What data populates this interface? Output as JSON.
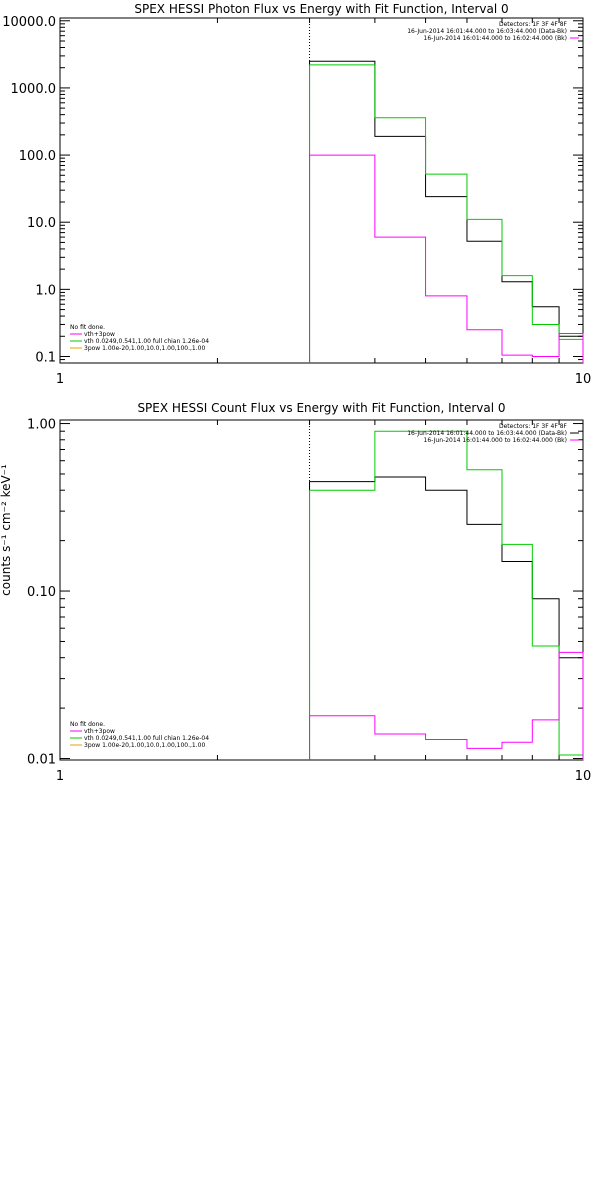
{
  "chart_data": [
    {
      "type": "line",
      "step": true,
      "title": "SPEX HESSI Photon Flux vs Energy with Fit Function, Interval 0",
      "xlabel": "",
      "ylabel": "",
      "xscale": "log",
      "yscale": "log",
      "xlim": [
        1,
        10
      ],
      "ylim": [
        0.08,
        11000
      ],
      "xtick_labels": [
        "1",
        "10"
      ],
      "ytick_values": [
        0.1,
        1,
        10,
        100,
        1000,
        10000
      ],
      "ytick_labels": [
        "0.1",
        "1.0",
        "10.0",
        "100.0",
        "1000.0",
        "10000.0"
      ],
      "vline_x": 3,
      "bin_edges": [
        3,
        4,
        5,
        6,
        7,
        8,
        9,
        10
      ],
      "legend_top_right": {
        "lines": [
          "Detectors: 1F 3F 4F 8F",
          "16-Jun-2014 16:01:44.000 to 16:03:44.000 (Data-Bk)",
          "16-Jun-2014 16:01:44.000 to 16:02:44.000 (Bk)"
        ],
        "colors": [
          "",
          "#000000",
          "#ff00ff"
        ]
      },
      "legend_bottom_left": {
        "lines": [
          "No fit done.",
          "vth+3pow",
          "vth 0.0249,0.541,1.00  full chian 1.26e-04",
          "3pow 1.00e-20,1.00,10.0,1.00,100.,1.00"
        ],
        "colors": [
          "",
          "#ff00ff",
          "#00cc00",
          "#e6a000"
        ]
      },
      "series": [
        {
          "name": "16-Jun-2014 16:01:44.000 to 16:03:44.000 (Data-Bk)",
          "color": "#000000",
          "values": [
            2500,
            190,
            24,
            5.2,
            1.3,
            0.55,
            0.2
          ]
        },
        {
          "name": "vth+3pow",
          "color": "#00cc00",
          "values": [
            2200,
            360,
            52,
            11,
            1.6,
            0.3,
            0.18
          ]
        },
        {
          "name": "16-Jun-2014 16:01:44.000 to 16:02:44.000 (Bk)",
          "color": "#ff00ff",
          "values": [
            100,
            6,
            0.8,
            0.25,
            0.105,
            0.1,
            0.22
          ]
        }
      ]
    },
    {
      "type": "line",
      "step": true,
      "title": "SPEX HESSI Count Flux vs Energy with Fit Function, Interval 0",
      "xlabel": "",
      "ylabel": "counts s⁻¹ cm⁻² keV⁻¹",
      "xscale": "log",
      "yscale": "log",
      "xlim": [
        1,
        10
      ],
      "ylim": [
        0.0098,
        1.05
      ],
      "xtick_labels": [
        "1",
        "10"
      ],
      "ytick_values": [
        0.01,
        0.1,
        1.0
      ],
      "ytick_labels": [
        "0.01",
        "0.10",
        "1.00"
      ],
      "vline_x": 3,
      "bin_edges": [
        3,
        4,
        5,
        6,
        7,
        8,
        9,
        10
      ],
      "legend_top_right": {
        "lines": [
          "Detectors: 1F 3F 4F 8F",
          "16-Jun-2014 16:01:44.000 to 16:03:44.000 (Data-Bk)",
          "16-Jun-2014 16:01:44.000 to 16:02:44.000 (Bk)"
        ],
        "colors": [
          "",
          "#000000",
          "#ff00ff"
        ]
      },
      "legend_bottom_left": {
        "lines": [
          "No fit done.",
          "vth+3pow",
          "vth 0.0249,0.541,1.00  full chian 1.26e-04",
          "3pow 1.00e-20,1.00,10.0,1.00,100.,1.00"
        ],
        "colors": [
          "",
          "#ff00ff",
          "#00cc00",
          "#e6a000"
        ]
      },
      "series": [
        {
          "name": "16-Jun-2014 16:01:44.000 to 16:03:44.000 (Data-Bk)",
          "color": "#000000",
          "values": [
            0.45,
            0.48,
            0.4,
            0.25,
            0.15,
            0.09,
            0.04
          ]
        },
        {
          "name": "vth+3pow",
          "color": "#00cc00",
          "values": [
            0.4,
            0.9,
            0.9,
            0.53,
            0.19,
            0.047,
            0.0105
          ]
        },
        {
          "name": "16-Jun-2014 16:01:44.000 to 16:02:44.000 (Bk)",
          "color": "#ff00ff",
          "values": [
            0.018,
            0.014,
            0.013,
            0.0115,
            0.0125,
            0.017,
            0.043
          ]
        }
      ]
    }
  ]
}
